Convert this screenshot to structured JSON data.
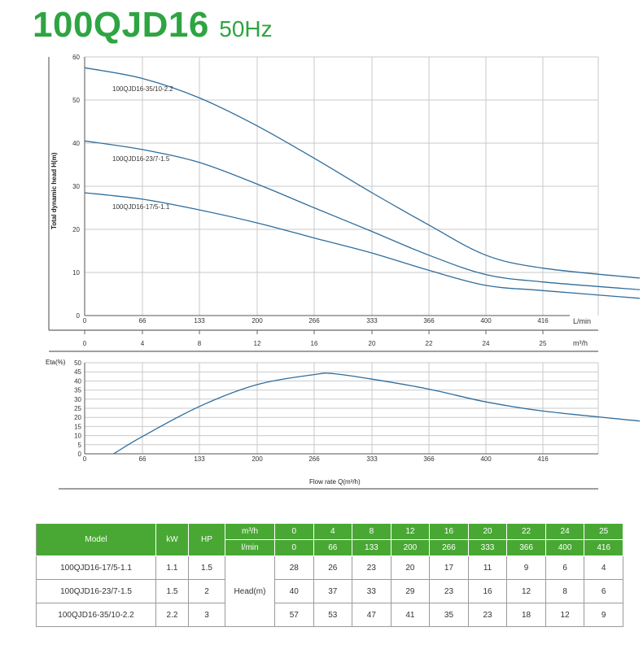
{
  "title": {
    "model": "100QJD16",
    "frequency": "50Hz"
  },
  "colors": {
    "title": "#2ea442",
    "curve": "#2f6d9c",
    "header_bg": "#49a834",
    "header_text": "#ffffff"
  },
  "chart_data": [
    {
      "type": "line",
      "ylabel": "Total dynamic head H(m)",
      "ylim": [
        0,
        60
      ],
      "yticks": [
        0,
        10,
        20,
        30,
        40,
        50,
        60
      ],
      "xlim": [
        0,
        27
      ],
      "x_unit_lmin": "L/min",
      "x_unit_m3h": "m³/h",
      "xticks_m3h": [
        0,
        4,
        8,
        12,
        16,
        20,
        22,
        24,
        25
      ],
      "xticks_lmin": [
        "0",
        "66",
        "133",
        "200",
        "266",
        "333",
        "366",
        "400",
        "416"
      ],
      "grid": true,
      "series": [
        {
          "name": "100QJD16-35/10-2.2",
          "x": [
            0,
            4,
            8,
            12,
            16,
            20,
            22,
            24,
            25,
            26.7
          ],
          "y": [
            57.5,
            55,
            50.5,
            44,
            36.5,
            28.5,
            21,
            14,
            11,
            8.7
          ]
        },
        {
          "name": "100QJD16-23/7-1.5",
          "x": [
            0,
            4,
            8,
            12,
            16,
            20,
            22,
            24,
            25,
            26.7
          ],
          "y": [
            40.5,
            38.5,
            35.5,
            30.5,
            25,
            19.5,
            14,
            9.5,
            7.8,
            6
          ]
        },
        {
          "name": "100QJD16-17/5-1.1",
          "x": [
            0,
            4,
            8,
            12,
            16,
            20,
            22,
            24,
            25,
            26.7
          ],
          "y": [
            28.5,
            27,
            24.5,
            21.5,
            18,
            14.5,
            10.5,
            7,
            5.8,
            4
          ]
        }
      ]
    },
    {
      "type": "line",
      "ylabel": "Eta(%)",
      "xlabel": "Flow rate Q(m³/h)",
      "ylim": [
        0,
        50
      ],
      "yticks": [
        0,
        5,
        10,
        15,
        20,
        25,
        30,
        35,
        40,
        45,
        50
      ],
      "xlim": [
        0,
        27
      ],
      "xticks_m3h": [
        0,
        4,
        8,
        12,
        16,
        20,
        22,
        24,
        25
      ],
      "xticks_lmin": [
        "0",
        "66",
        "133",
        "200",
        "266",
        "333",
        "366",
        "400",
        "416"
      ],
      "grid": true,
      "series": [
        {
          "x": [
            2,
            4,
            8,
            12,
            16,
            17.3,
            20,
            22,
            24,
            25,
            26.7
          ],
          "y": [
            0,
            9.5,
            26,
            38,
            43.5,
            44,
            41,
            35.5,
            28.5,
            23.5,
            18
          ]
        }
      ]
    }
  ],
  "table": {
    "header_row1": {
      "model": "Model",
      "kw": "kW",
      "hp": "HP",
      "unit": "m³/h",
      "values": [
        "0",
        "4",
        "8",
        "12",
        "16",
        "20",
        "22",
        "24",
        "25"
      ]
    },
    "header_row2": {
      "unit": "l/min",
      "values": [
        "0",
        "66",
        "133",
        "200",
        "266",
        "333",
        "366",
        "400",
        "416"
      ]
    },
    "head_label": "Head(m)",
    "rows": [
      {
        "model": "100QJD16-17/5-1.1",
        "kw": "1.1",
        "hp": "1.5",
        "values": [
          "28",
          "26",
          "23",
          "20",
          "17",
          "11",
          "9",
          "6",
          "4"
        ]
      },
      {
        "model": "100QJD16-23/7-1.5",
        "kw": "1.5",
        "hp": "2",
        "values": [
          "40",
          "37",
          "33",
          "29",
          "23",
          "16",
          "12",
          "8",
          "6"
        ]
      },
      {
        "model": "100QJD16-35/10-2.2",
        "kw": "2.2",
        "hp": "3",
        "values": [
          "57",
          "53",
          "47",
          "41",
          "35",
          "23",
          "18",
          "12",
          "9"
        ]
      }
    ]
  }
}
